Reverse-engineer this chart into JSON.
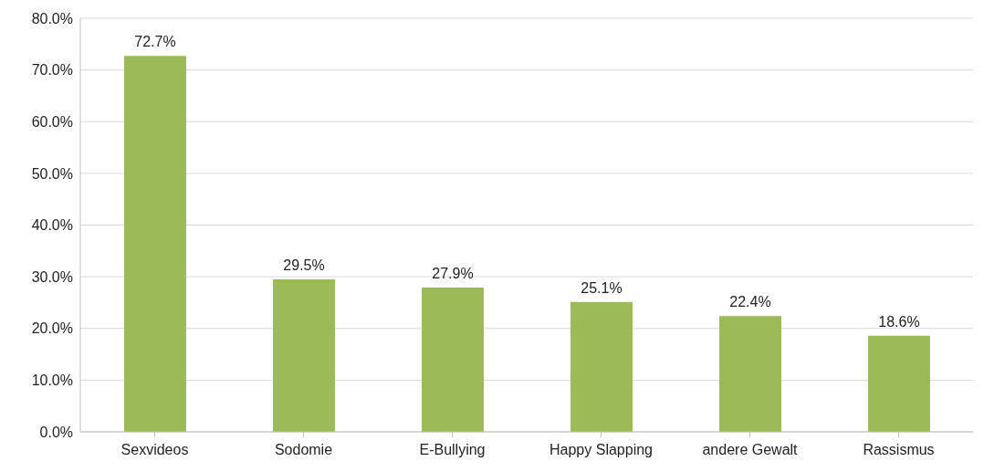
{
  "chart_data": {
    "type": "bar",
    "categories": [
      "Sexvideos",
      "Sodomie",
      "E-Bullying",
      "Happy Slapping",
      "andere Gewalt",
      "Rassismus"
    ],
    "values": [
      72.7,
      29.5,
      27.9,
      25.1,
      22.4,
      18.6
    ],
    "value_labels": [
      "72.7%",
      "29.5%",
      "27.9%",
      "25.1%",
      "22.4%",
      "18.6%"
    ],
    "color": "#9bbb59",
    "ylim": [
      0,
      80
    ],
    "yticks": [
      {
        "value": 0,
        "label": "0.0%"
      },
      {
        "value": 10,
        "label": "10.0%"
      },
      {
        "value": 20,
        "label": "20.0%"
      },
      {
        "value": 30,
        "label": "30.0%"
      },
      {
        "value": 40,
        "label": "40.0%"
      },
      {
        "value": 50,
        "label": "50.0%"
      },
      {
        "value": 60,
        "label": "60.0%"
      },
      {
        "value": 70,
        "label": "70.0%"
      },
      {
        "value": 80,
        "label": "80.0%"
      }
    ],
    "grid": "y"
  }
}
